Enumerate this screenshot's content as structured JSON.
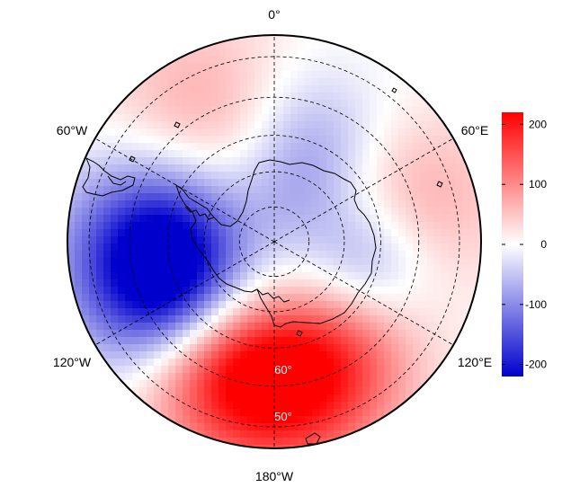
{
  "map": {
    "projection": "south-polar-stereographic",
    "longitude_labels": {
      "top": "0°",
      "upper_left": "60°W",
      "upper_right": "60°E",
      "lower_left": "120°W",
      "lower_right": "120°E",
      "bottom": "180°W"
    },
    "latitude_labels": {
      "inner": "60°",
      "outer": "50°"
    },
    "field_anomalies": [
      {
        "lon": -90,
        "lat": -58,
        "value": -220,
        "spread_deg": 16
      },
      {
        "lon": -120,
        "lat": -55,
        "value": -150,
        "spread_deg": 14
      },
      {
        "lon": 180,
        "lat": -50,
        "value": 190,
        "spread_deg": 16
      },
      {
        "lon": 150,
        "lat": -52,
        "value": 100,
        "spread_deg": 14
      },
      {
        "lon": -150,
        "lat": -52,
        "value": 120,
        "spread_deg": 14
      },
      {
        "lon": -30,
        "lat": -50,
        "value": 80,
        "spread_deg": 18
      },
      {
        "lon": 75,
        "lat": -50,
        "value": 80,
        "spread_deg": 16
      },
      {
        "lon": 20,
        "lat": -60,
        "value": -80,
        "spread_deg": 14
      },
      {
        "lon": 100,
        "lat": -62,
        "value": -90,
        "spread_deg": 12
      },
      {
        "lon": 30,
        "lat": -78,
        "value": -40,
        "spread_deg": 12
      }
    ]
  },
  "colorbar": {
    "min": -220,
    "max": 220,
    "tick_labels": [
      "200",
      "100",
      "0",
      "-100",
      "-200"
    ],
    "tick_values": [
      200,
      100,
      0,
      -100,
      -200
    ],
    "color_low": "#0000cc",
    "color_mid": "#ffffff",
    "color_high": "#ff0000"
  },
  "colors": {
    "coastline": "#000000",
    "gridline": "#000000",
    "border": "#000000"
  }
}
